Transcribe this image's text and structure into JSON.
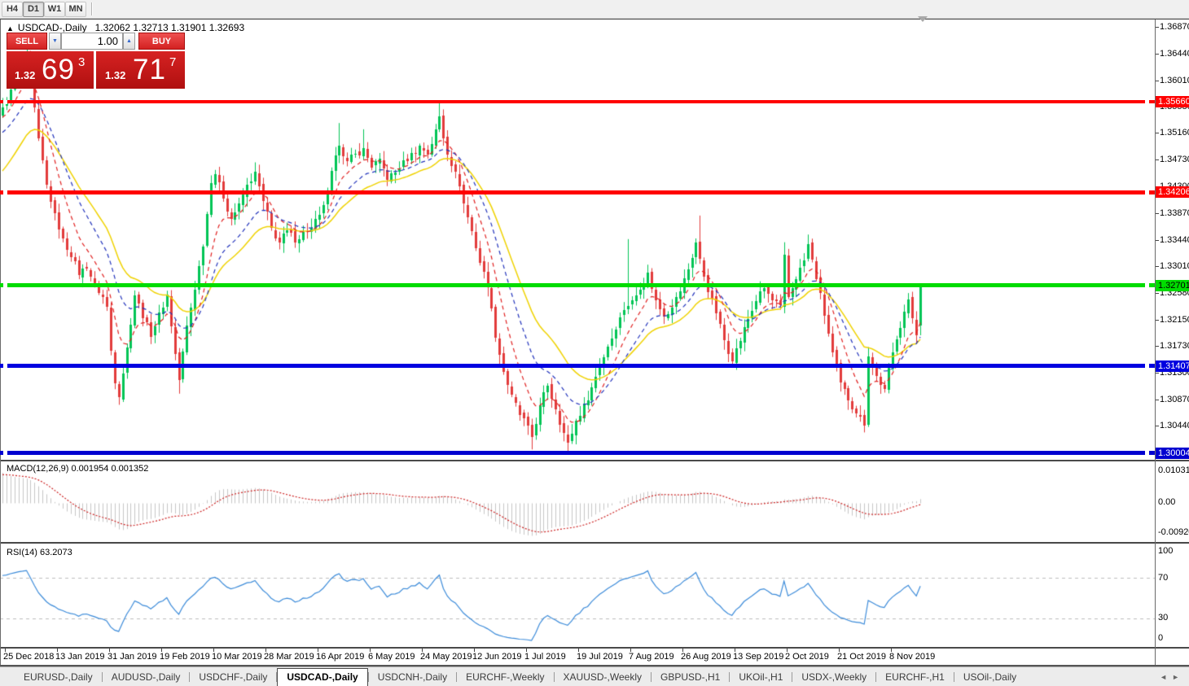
{
  "toolbar": {
    "timeframes": [
      "H4",
      "D1",
      "W1",
      "MN"
    ],
    "active_timeframe": "D1"
  },
  "chart_header": {
    "collapse_icon": "▲",
    "symbol": "USDCAD-,Daily",
    "ohlc_text": "1.32062 1.32713 1.31901 1.32693"
  },
  "trade_panel": {
    "sell_label": "SELL",
    "buy_label": "BUY",
    "volume": "1.00",
    "stepper_down_icon": "▼",
    "stepper_up_icon": "▲",
    "sell_price_prefix": "1.32",
    "sell_price_big": "69",
    "sell_price_sup": "3",
    "buy_price_prefix": "1.32",
    "buy_price_big": "71",
    "buy_price_sup": "7"
  },
  "price_axis": {
    "ticks": [
      "1.36870",
      "1.36440",
      "1.36010",
      "1.35580",
      "1.35160",
      "1.34730",
      "1.34300",
      "1.33870",
      "1.33440",
      "1.33010",
      "1.32580",
      "1.32150",
      "1.31730",
      "1.31300",
      "1.30870",
      "1.30440"
    ]
  },
  "hlines": [
    {
      "name": "resistance-line-1",
      "label": "1.35660",
      "price": 1.3566,
      "color": "#FF0000",
      "text_color": "#FFFFFF",
      "thickness": 4
    },
    {
      "name": "resistance-line-2",
      "label": "1.34206",
      "price": 1.34206,
      "color": "#FF0000",
      "text_color": "#FFFFFF",
      "thickness": 5
    },
    {
      "name": "pivot-line-green",
      "label": "1.32701",
      "price": 1.32701,
      "color": "#00DC00",
      "text_color": "#000000",
      "thickness": 5
    },
    {
      "name": "support-line-1",
      "label": "1.31407",
      "price": 1.31407,
      "color": "#0000E0",
      "text_color": "#FFFFFF",
      "thickness": 5
    },
    {
      "name": "support-line-2",
      "label": "1.30004",
      "price": 1.30004,
      "color": "#0000D0",
      "text_color": "#FFFFFF",
      "thickness": 5
    }
  ],
  "indicators": {
    "macd": {
      "title": "MACD(12,26,9)",
      "value_main": "0.001954",
      "value_signal": "0.001352",
      "scale_top": "0.010311",
      "scale_mid": "0.00",
      "scale_bottom": "-0.009207"
    },
    "rsi": {
      "title": "RSI(14)",
      "value": "63.2073",
      "levels": [
        "100",
        "70",
        "30",
        "0"
      ]
    }
  },
  "date_axis": {
    "labels": [
      "25 Dec 2018",
      "13 Jan 2019",
      "31 Jan 2019",
      "19 Feb 2019",
      "10 Mar 2019",
      "28 Mar 2019",
      "16 Apr 2019",
      "6 May 2019",
      "24 May 2019",
      "12 Jun 2019",
      "1 Jul 2019",
      "19 Jul 2019",
      "7 Aug 2019",
      "26 Aug 2019",
      "13 Sep 2019",
      "2 Oct 2019",
      "21 Oct 2019",
      "8 Nov 2019"
    ]
  },
  "tabs": {
    "items": [
      {
        "label": "EURUSD-,Daily"
      },
      {
        "label": "AUDUSD-,Daily"
      },
      {
        "label": "USDCHF-,Daily"
      },
      {
        "label": "USDCAD-,Daily"
      },
      {
        "label": "USDCNH-,Daily"
      },
      {
        "label": "EURCHF-,Weekly"
      },
      {
        "label": "XAUUSD-,Weekly"
      },
      {
        "label": "GBPUSD-,H1"
      },
      {
        "label": "UKOil-,H1"
      },
      {
        "label": "USDX-,Weekly"
      },
      {
        "label": "EURCHF-,H1"
      },
      {
        "label": "USOil-,Daily"
      }
    ],
    "active": "USDCAD-,Daily",
    "scroll_left_icon": "◄",
    "scroll_right_icon": "►"
  },
  "chart_data": {
    "type": "candlestick",
    "symbol": "USDCAD-",
    "timeframe": "Daily",
    "candles_count": 230,
    "visible_price_range": [
      1.299,
      1.37
    ],
    "y_ticks": [
      1.3687,
      1.3644,
      1.3601,
      1.3558,
      1.3516,
      1.3473,
      1.343,
      1.3387,
      1.3344,
      1.3301,
      1.3258,
      1.3215,
      1.3173,
      1.313,
      1.3087,
      1.3044
    ],
    "x_labels": [
      "25 Dec 2018",
      "13 Jan 2019",
      "31 Jan 2019",
      "19 Feb 2019",
      "10 Mar 2019",
      "28 Mar 2019",
      "16 Apr 2019",
      "6 May 2019",
      "24 May 2019",
      "12 Jun 2019",
      "1 Jul 2019",
      "19 Jul 2019",
      "7 Aug 2019",
      "26 Aug 2019",
      "13 Sep 2019",
      "2 Oct 2019",
      "21 Oct 2019",
      "8 Nov 2019"
    ],
    "last_candle": {
      "open": 1.32062,
      "high": 1.32713,
      "low": 1.31901,
      "close": 1.32693
    },
    "close_anchors": [
      [
        0,
        1.3555
      ],
      [
        2,
        1.3585
      ],
      [
        4,
        1.3618
      ],
      [
        6,
        1.3638
      ],
      [
        7,
        1.36
      ],
      [
        9,
        1.3505
      ],
      [
        11,
        1.3432
      ],
      [
        13,
        1.3385
      ],
      [
        15,
        1.3345
      ],
      [
        17,
        1.3318
      ],
      [
        19,
        1.3288
      ],
      [
        21,
        1.33
      ],
      [
        23,
        1.3272
      ],
      [
        25,
        1.3252
      ],
      [
        26,
        1.3235
      ],
      [
        27,
        1.3165
      ],
      [
        28,
        1.3115
      ],
      [
        29,
        1.3092
      ],
      [
        31,
        1.317
      ],
      [
        33,
        1.3255
      ],
      [
        35,
        1.322
      ],
      [
        37,
        1.319
      ],
      [
        39,
        1.3225
      ],
      [
        41,
        1.3255
      ],
      [
        43,
        1.316
      ],
      [
        44,
        1.3118
      ],
      [
        46,
        1.3205
      ],
      [
        48,
        1.3265
      ],
      [
        50,
        1.3335
      ],
      [
        52,
        1.3438
      ],
      [
        53,
        1.345
      ],
      [
        55,
        1.3412
      ],
      [
        57,
        1.3378
      ],
      [
        59,
        1.34
      ],
      [
        61,
        1.3432
      ],
      [
        63,
        1.3452
      ],
      [
        65,
        1.3405
      ],
      [
        67,
        1.3362
      ],
      [
        69,
        1.334
      ],
      [
        71,
        1.3358
      ],
      [
        73,
        1.3342
      ],
      [
        75,
        1.3356
      ],
      [
        77,
        1.3362
      ],
      [
        79,
        1.3382
      ],
      [
        81,
        1.3422
      ],
      [
        83,
        1.3478
      ],
      [
        84,
        1.3498
      ],
      [
        86,
        1.347
      ],
      [
        88,
        1.3482
      ],
      [
        90,
        1.349
      ],
      [
        92,
        1.3462
      ],
      [
        94,
        1.3472
      ],
      [
        96,
        1.3442
      ],
      [
        98,
        1.3452
      ],
      [
        100,
        1.347
      ],
      [
        102,
        1.3482
      ],
      [
        104,
        1.3495
      ],
      [
        106,
        1.3482
      ],
      [
        108,
        1.352
      ],
      [
        109,
        1.3542
      ],
      [
        110,
        1.3508
      ],
      [
        112,
        1.3465
      ],
      [
        114,
        1.3432
      ],
      [
        115,
        1.3402
      ],
      [
        117,
        1.3358
      ],
      [
        119,
        1.3308
      ],
      [
        121,
        1.327
      ],
      [
        123,
        1.3188
      ],
      [
        125,
        1.3132
      ],
      [
        127,
        1.3092
      ],
      [
        129,
        1.3062
      ],
      [
        131,
        1.3042
      ],
      [
        132,
        1.3026
      ],
      [
        134,
        1.3076
      ],
      [
        136,
        1.311
      ],
      [
        138,
        1.3072
      ],
      [
        140,
        1.3032
      ],
      [
        141,
        1.3016
      ],
      [
        143,
        1.3052
      ],
      [
        145,
        1.3078
      ],
      [
        147,
        1.3106
      ],
      [
        149,
        1.3142
      ],
      [
        151,
        1.3172
      ],
      [
        153,
        1.3202
      ],
      [
        155,
        1.3232
      ],
      [
        157,
        1.3246
      ],
      [
        159,
        1.3266
      ],
      [
        161,
        1.329
      ],
      [
        163,
        1.3246
      ],
      [
        165,
        1.3222
      ],
      [
        167,
        1.3236
      ],
      [
        169,
        1.3262
      ],
      [
        171,
        1.3296
      ],
      [
        173,
        1.334
      ],
      [
        174,
        1.3312
      ],
      [
        176,
        1.3262
      ],
      [
        178,
        1.3226
      ],
      [
        180,
        1.3182
      ],
      [
        182,
        1.315
      ],
      [
        184,
        1.3182
      ],
      [
        186,
        1.3216
      ],
      [
        188,
        1.3246
      ],
      [
        190,
        1.3266
      ],
      [
        192,
        1.3246
      ],
      [
        194,
        1.3236
      ],
      [
        195,
        1.3318
      ],
      [
        196,
        1.3252
      ],
      [
        198,
        1.3282
      ],
      [
        200,
        1.331
      ],
      [
        201,
        1.3336
      ],
      [
        203,
        1.3282
      ],
      [
        205,
        1.3222
      ],
      [
        207,
        1.3162
      ],
      [
        209,
        1.3112
      ],
      [
        211,
        1.3086
      ],
      [
        213,
        1.3066
      ],
      [
        215,
        1.3046
      ],
      [
        216,
        1.3158
      ],
      [
        218,
        1.3124
      ],
      [
        220,
        1.3102
      ],
      [
        221,
        1.3136
      ],
      [
        223,
        1.3186
      ],
      [
        225,
        1.3228
      ],
      [
        226,
        1.3246
      ],
      [
        227,
        1.3218
      ],
      [
        228,
        1.3192
      ],
      [
        229,
        1.32693
      ]
    ],
    "wick_overrides": [
      {
        "i": 6,
        "high": 1.366
      },
      {
        "i": 29,
        "low": 1.3078
      },
      {
        "i": 44,
        "low": 1.3096
      },
      {
        "i": 84,
        "high": 1.3532
      },
      {
        "i": 90,
        "high": 1.3522
      },
      {
        "i": 109,
        "high": 1.3566
      },
      {
        "i": 132,
        "low": 1.3006
      },
      {
        "i": 141,
        "low": 1.2999
      },
      {
        "i": 156,
        "high": 1.3345
      },
      {
        "i": 174,
        "high": 1.3383
      },
      {
        "i": 195,
        "high": 1.334
      },
      {
        "i": 215,
        "low": 1.3042
      }
    ],
    "series_colors": {
      "bull": "#00C455",
      "bear": "#E23B3B"
    },
    "moving_averages": [
      {
        "period": 8,
        "color": "#E02020",
        "style": "dash"
      },
      {
        "period": 16,
        "color": "#2233BB",
        "style": "dash"
      },
      {
        "period": 26,
        "color": "#EFD200",
        "style": "solid"
      }
    ],
    "macd": {
      "fast": 12,
      "slow": 26,
      "signal": 9,
      "hist_color": "#C6C6C6",
      "signal_color": "#CC2222",
      "scale_top": 0.010311,
      "scale_bottom": -0.009207,
      "current_main": 0.001954,
      "current_signal": 0.001352
    },
    "rsi": {
      "period": 14,
      "color": "#3C8BD9",
      "levels": [
        70,
        30
      ],
      "range": [
        0,
        100
      ],
      "current": 63.2073
    }
  }
}
